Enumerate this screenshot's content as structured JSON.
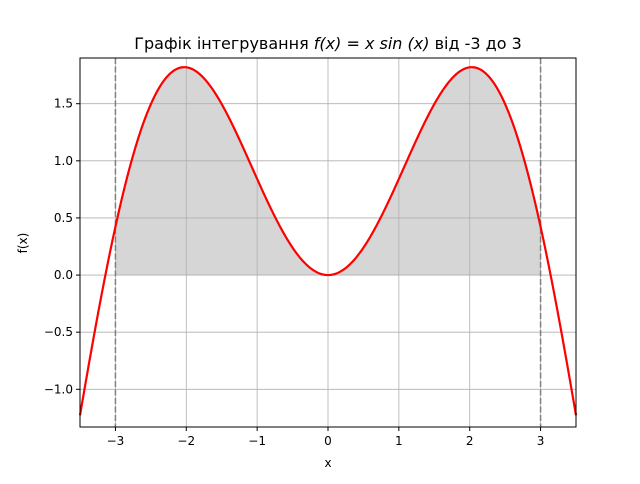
{
  "chart_data": {
    "type": "line",
    "title": "Графік інтегрування f(x) = x sin(x) від -3 до 3",
    "title_parts": {
      "prefix": "Графік інтегрування ",
      "math": "f(x) = x sin (x)",
      "suffix": " від -3 до 3"
    },
    "xlabel": "x",
    "ylabel": "f(x)",
    "xlim": [
      -3.5,
      3.5
    ],
    "ylim": [
      -1.33,
      1.9
    ],
    "xticks": [
      -3,
      -2,
      -1,
      0,
      1,
      2,
      3
    ],
    "xtick_labels": [
      "−3",
      "−2",
      "−1",
      "0",
      "1",
      "2",
      "3"
    ],
    "yticks": [
      -1.0,
      -0.5,
      0.0,
      0.5,
      1.0,
      1.5
    ],
    "ytick_labels": [
      "−1.0",
      "−0.5",
      "0.0",
      "0.5",
      "1.0",
      "1.5"
    ],
    "grid": true,
    "function": "x*sin(x)",
    "series": [
      {
        "color": "#ff0000",
        "x": [
          -3.5,
          -3.25,
          -3.0,
          -2.75,
          -2.5,
          -2.25,
          -2.0,
          -1.75,
          -1.5,
          -1.25,
          -1.0,
          -0.75,
          -0.5,
          -0.25,
          0.0,
          0.25,
          0.5,
          0.75,
          1.0,
          1.25,
          1.5,
          1.75,
          2.0,
          2.25,
          2.5,
          2.75,
          3.0,
          3.25,
          3.5
        ],
        "y": [
          -1.228,
          -0.351,
          0.423,
          1.051,
          1.496,
          1.753,
          1.819,
          1.722,
          1.496,
          1.186,
          0.841,
          0.511,
          0.24,
          0.062,
          0.0,
          0.062,
          0.24,
          0.511,
          0.841,
          1.186,
          1.496,
          1.722,
          1.819,
          1.753,
          1.496,
          1.051,
          0.423,
          -0.351,
          -1.228
        ]
      }
    ],
    "shaded_region": {
      "from": -3,
      "to": 3,
      "color": "#d6d6d6"
    },
    "vertical_lines": [
      {
        "x": -3,
        "style": "dashed",
        "color": "#808080"
      },
      {
        "x": 3,
        "style": "dashed",
        "color": "#808080"
      }
    ]
  }
}
